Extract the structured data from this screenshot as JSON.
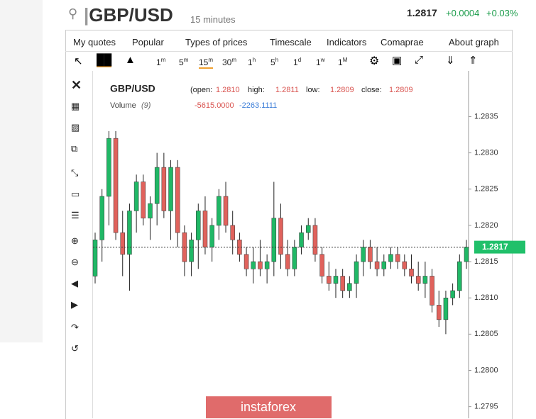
{
  "header": {
    "symbol": "GBP/USD",
    "interval": "15 minutes",
    "price": "1.2817",
    "change": "+0.0004",
    "change_pct": "+0.03%"
  },
  "menu": [
    "My quotes",
    "Popular",
    "Types of prices",
    "Timescale",
    "Indicators",
    "Comaprae",
    "About graph"
  ],
  "timeframes": [
    {
      "n": "1",
      "u": "m"
    },
    {
      "n": "5",
      "u": "m"
    },
    {
      "n": "15",
      "u": "m"
    },
    {
      "n": "30",
      "u": "m"
    },
    {
      "n": "1",
      "u": "h"
    },
    {
      "n": "5",
      "u": "h"
    },
    {
      "n": "1",
      "u": "d"
    },
    {
      "n": "1",
      "u": "w"
    },
    {
      "n": "1",
      "u": "M"
    }
  ],
  "legend": {
    "symbol": "GBP/USD",
    "open_label": "(open:",
    "open": "1.2810",
    "high_label": "high:",
    "high": "1.2811",
    "low_label": "low:",
    "low": "1.2809",
    "close_label": "close:",
    "close": "1.2809",
    "volume_label": "Volume",
    "volume_period": "(9)",
    "volume_1": "-5615.0000",
    "volume_2": "-2263.1111"
  },
  "watermark": "instaforex",
  "chart_data": {
    "type": "candlestick",
    "open": [
      1.2813,
      1.2818,
      1.2824,
      1.2832,
      1.2819,
      1.2816,
      1.2822,
      1.2826,
      1.2821,
      1.2823,
      1.2828,
      1.2822,
      1.2828,
      1.2819,
      1.2815,
      1.2818,
      1.2822,
      1.2817,
      1.282,
      1.2824,
      1.282,
      1.2818,
      1.2816,
      1.2814,
      1.2815,
      1.2814,
      1.2815,
      1.2821,
      1.2816,
      1.2814,
      1.2817,
      1.2819,
      1.282,
      1.2816,
      1.2813,
      1.2812,
      1.2813,
      1.2811,
      1.2812,
      1.2815,
      1.2817,
      1.2815,
      1.2814,
      1.2815,
      1.2816,
      1.2815,
      1.2814,
      1.2813,
      1.2812,
      1.2813,
      1.2809,
      1.2807,
      1.281,
      1.2811,
      1.2815
    ],
    "high": [
      1.2819,
      1.2825,
      1.2833,
      1.2833,
      1.2822,
      1.2823,
      1.2827,
      1.2827,
      1.2824,
      1.283,
      1.283,
      1.2829,
      1.2829,
      1.282,
      1.2819,
      1.2823,
      1.2824,
      1.2821,
      1.2825,
      1.2826,
      1.2822,
      1.2819,
      1.2817,
      1.2817,
      1.2818,
      1.2816,
      1.2826,
      1.2823,
      1.2818,
      1.2818,
      1.282,
      1.2821,
      1.2821,
      1.2817,
      1.2815,
      1.2814,
      1.2814,
      1.2813,
      1.2816,
      1.2818,
      1.2818,
      1.2817,
      1.2816,
      1.2817,
      1.2817,
      1.2816,
      1.2816,
      1.2815,
      1.2815,
      1.2814,
      1.2811,
      1.2811,
      1.2812,
      1.2816,
      1.2818
    ],
    "low": [
      1.2812,
      1.2815,
      1.282,
      1.2818,
      1.2813,
      1.2811,
      1.2819,
      1.282,
      1.2818,
      1.282,
      1.2821,
      1.2818,
      1.2817,
      1.2813,
      1.2813,
      1.2814,
      1.2816,
      1.2815,
      1.2818,
      1.2819,
      1.2816,
      1.2815,
      1.2813,
      1.2812,
      1.2813,
      1.2812,
      1.2813,
      1.2814,
      1.2813,
      1.2813,
      1.2816,
      1.2818,
      1.2815,
      1.2812,
      1.2811,
      1.281,
      1.281,
      1.281,
      1.281,
      1.2813,
      1.2814,
      1.2813,
      1.2813,
      1.2814,
      1.2814,
      1.2813,
      1.2812,
      1.2811,
      1.281,
      1.2808,
      1.2806,
      1.2805,
      1.2809,
      1.281,
      1.2814
    ],
    "close": [
      1.2818,
      1.2824,
      1.2832,
      1.2819,
      1.2816,
      1.2822,
      1.2826,
      1.2821,
      1.2823,
      1.2828,
      1.2822,
      1.2828,
      1.2819,
      1.2815,
      1.2818,
      1.2822,
      1.2817,
      1.282,
      1.2824,
      1.282,
      1.2818,
      1.2816,
      1.2814,
      1.2815,
      1.2814,
      1.2815,
      1.2821,
      1.2816,
      1.2814,
      1.2817,
      1.2819,
      1.282,
      1.2816,
      1.2813,
      1.2812,
      1.2813,
      1.2811,
      1.2812,
      1.2815,
      1.2817,
      1.2815,
      1.2814,
      1.2815,
      1.2816,
      1.2815,
      1.2814,
      1.2813,
      1.2812,
      1.2813,
      1.2809,
      1.2807,
      1.281,
      1.2811,
      1.2815,
      1.2817
    ],
    "up_color": "#20b866",
    "down_color": "#e0625c",
    "last": 1.2817,
    "last_color": "#20c06a",
    "ylim": [
      1.27934,
      1.28413
    ],
    "yticks": [
      {
        "value": 1.2795,
        "label": "1.2795"
      },
      {
        "value": 1.28,
        "label": "1.2800"
      },
      {
        "value": 1.2805,
        "label": "1.2805"
      },
      {
        "value": 1.281,
        "label": "1.2810"
      },
      {
        "value": 1.2815,
        "label": "1.2815"
      },
      {
        "value": 1.282,
        "label": "1.2820"
      },
      {
        "value": 1.2825,
        "label": "1.2825"
      },
      {
        "value": 1.283,
        "label": "1.2830"
      },
      {
        "value": 1.2835,
        "label": "1.2835"
      }
    ]
  }
}
